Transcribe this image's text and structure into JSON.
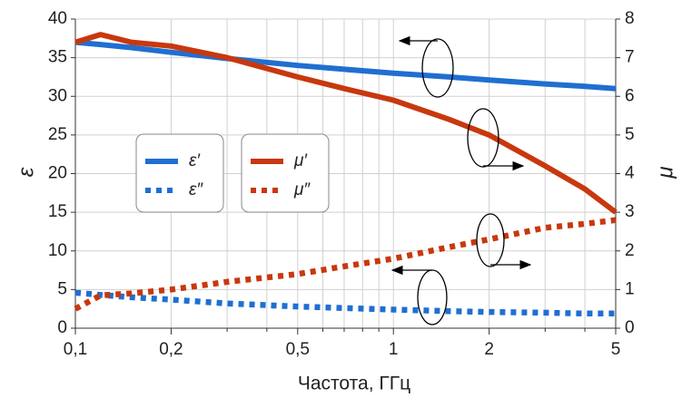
{
  "chart_data": {
    "type": "line",
    "x_label": "Частота, ГГц",
    "y_label": "ε",
    "y2_label": "μ",
    "x": [
      0.1,
      0.12,
      0.15,
      0.2,
      0.3,
      0.5,
      0.7,
      1,
      1.5,
      2,
      3,
      4,
      5
    ],
    "series": [
      {
        "name": "ε′",
        "color": "#1f6fd1",
        "style": "solid",
        "values": [
          37,
          36.7,
          36.3,
          35.7,
          34.9,
          34,
          33.5,
          33,
          32.5,
          32.1,
          31.6,
          31.3,
          31
        ]
      },
      {
        "name": "ε″",
        "color": "#1f6fd1",
        "style": "dotted",
        "values": [
          4.6,
          4.3,
          4,
          3.7,
          3.2,
          2.8,
          2.6,
          2.4,
          2.2,
          2.1,
          2,
          1.9,
          1.9
        ]
      },
      {
        "name": "μ′",
        "color": "#c8380e",
        "style": "solid",
        "axis": "y2",
        "values": [
          7.4,
          7.6,
          7.4,
          7.3,
          7.0,
          6.5,
          6.2,
          5.9,
          5.4,
          5.0,
          4.2,
          3.6,
          3.0
        ]
      },
      {
        "name": "μ″",
        "color": "#c8380e",
        "style": "dotted",
        "axis": "y2",
        "values": [
          0.5,
          0.85,
          0.9,
          1.0,
          1.2,
          1.4,
          1.6,
          1.8,
          2.1,
          2.3,
          2.6,
          2.7,
          2.8
        ]
      }
    ],
    "x_log": true,
    "xlim": [
      0.1,
      5
    ],
    "xticks": [
      {
        "value": 0.1,
        "label": "0,1"
      },
      {
        "value": 0.2,
        "label": "0,2"
      },
      {
        "value": 0.5,
        "label": "0,5"
      },
      1,
      2,
      5
    ],
    "xminor": [
      0.3,
      0.4,
      0.6,
      0.7,
      0.8,
      0.9,
      3,
      4
    ],
    "ylim": [
      0,
      40
    ],
    "yticks": [
      0,
      5,
      10,
      15,
      20,
      25,
      30,
      35,
      40
    ],
    "y2lim": [
      0,
      8
    ],
    "y2ticks": [
      0,
      1,
      2,
      3,
      4,
      5,
      6,
      7,
      8
    ],
    "grid": true
  }
}
